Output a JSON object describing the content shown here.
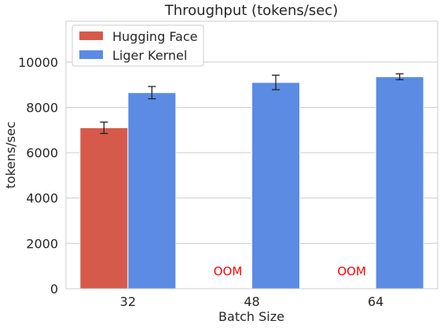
{
  "chart_data": {
    "type": "bar",
    "title": "Throughput (tokens/sec)",
    "xlabel": "Batch Size",
    "ylabel": "tokens/sec",
    "categories": [
      "32",
      "48",
      "64"
    ],
    "ylim": [
      0,
      11800
    ],
    "yticks": [
      0,
      2000,
      4000,
      6000,
      8000,
      10000
    ],
    "grid": true,
    "legend_position": "top-left",
    "series": [
      {
        "name": "Hugging Face",
        "color": "#d65a4b",
        "values": [
          7100,
          null,
          null
        ],
        "errors": [
          250,
          null,
          null
        ],
        "missing_label": "OOM"
      },
      {
        "name": "Liger Kernel",
        "color": "#5b8be3",
        "values": [
          8650,
          9100,
          9350
        ],
        "errors": [
          270,
          320,
          130
        ]
      }
    ],
    "annotation_color": "#ff0000"
  }
}
